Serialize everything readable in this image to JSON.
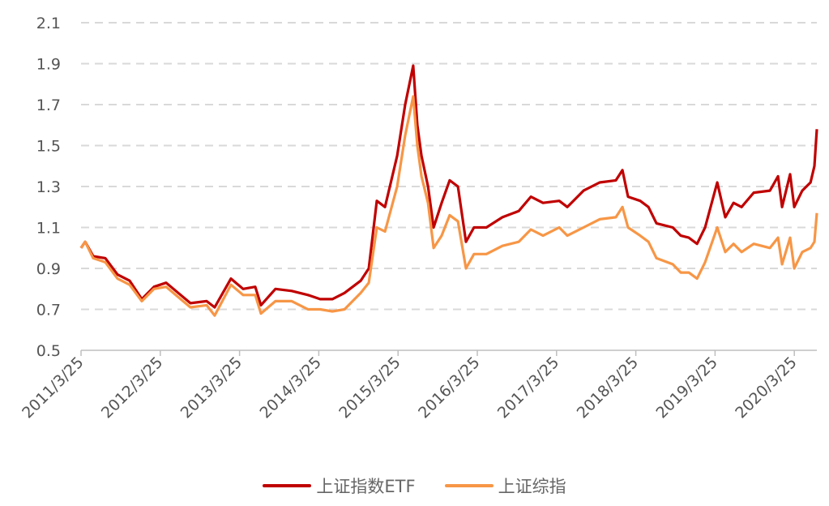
{
  "chart_data": {
    "type": "line",
    "title": "",
    "xlabel": "",
    "ylabel": "",
    "ylim": [
      0.5,
      2.1
    ],
    "yticks": [
      "0.5",
      "0.7",
      "0.9",
      "1.1",
      "1.3",
      "1.5",
      "1.7",
      "1.9",
      "2.1"
    ],
    "xticks": [
      "2011/3/25",
      "2012/3/25",
      "2013/3/25",
      "2014/3/25",
      "2015/3/25",
      "2016/3/25",
      "2017/3/25",
      "2018/3/25",
      "2019/3/25",
      "2020/3/25"
    ],
    "grid": "horizontal dashed",
    "legend_position": "bottom",
    "x": [
      "2011-03-25",
      "2011-04-13",
      "2011-05-20",
      "2011-07-15",
      "2011-09-09",
      "2011-11-04",
      "2011-12-30",
      "2012-02-24",
      "2012-04-20",
      "2012-06-15",
      "2012-08-10",
      "2012-10-24",
      "2012-11-30",
      "2013-02-13",
      "2013-04-10",
      "2013-06-05",
      "2013-07-01",
      "2013-09-06",
      "2013-11-20",
      "2014-02-03",
      "2014-03-31",
      "2014-05-26",
      "2014-07-21",
      "2014-10-04",
      "2014-11-10",
      "2014-12-17",
      "2015-01-24",
      "2015-03-21",
      "2015-04-27",
      "2015-06-03",
      "2015-06-22",
      "2015-07-11",
      "2015-08-10",
      "2015-09-05",
      "2015-10-12",
      "2015-11-18",
      "2015-12-26",
      "2016-02-01",
      "2016-03-09",
      "2016-05-05",
      "2016-07-18",
      "2016-10-01",
      "2016-11-26",
      "2017-01-21",
      "2017-04-06",
      "2017-05-13",
      "2017-07-27",
      "2017-10-09",
      "2017-12-23",
      "2018-01-22",
      "2018-02-17",
      "2018-04-14",
      "2018-05-22",
      "2018-06-28",
      "2018-09-11",
      "2018-10-18",
      "2018-11-24",
      "2019-01-01",
      "2019-02-07",
      "2019-04-04",
      "2019-05-11",
      "2019-06-18",
      "2019-07-25",
      "2019-09-19",
      "2019-12-03",
      "2020-01-09",
      "2020-01-28",
      "2020-03-05",
      "2020-03-24",
      "2020-04-30",
      "2020-06-07",
      "2020-06-25",
      "2020-07-06"
    ],
    "series": [
      {
        "name": "上证指数ETF",
        "color": "#C00000",
        "values": [
          1.0,
          1.03,
          0.96,
          0.95,
          0.87,
          0.84,
          0.75,
          0.81,
          0.83,
          0.78,
          0.73,
          0.74,
          0.71,
          0.85,
          0.8,
          0.81,
          0.72,
          0.8,
          0.79,
          0.77,
          0.75,
          0.75,
          0.78,
          0.84,
          0.9,
          1.23,
          1.2,
          1.45,
          1.7,
          1.89,
          1.6,
          1.45,
          1.3,
          1.1,
          1.22,
          1.33,
          1.3,
          1.03,
          1.1,
          1.1,
          1.15,
          1.18,
          1.25,
          1.22,
          1.23,
          1.2,
          1.28,
          1.32,
          1.33,
          1.38,
          1.25,
          1.23,
          1.2,
          1.12,
          1.1,
          1.06,
          1.05,
          1.02,
          1.1,
          1.32,
          1.15,
          1.22,
          1.2,
          1.27,
          1.28,
          1.35,
          1.2,
          1.36,
          1.2,
          1.28,
          1.32,
          1.4,
          1.58
        ]
      },
      {
        "name": "上证综指",
        "color": "#F79646",
        "values": [
          1.0,
          1.03,
          0.95,
          0.93,
          0.85,
          0.82,
          0.74,
          0.8,
          0.81,
          0.76,
          0.71,
          0.72,
          0.67,
          0.82,
          0.77,
          0.77,
          0.68,
          0.74,
          0.74,
          0.7,
          0.7,
          0.69,
          0.7,
          0.78,
          0.83,
          1.1,
          1.08,
          1.3,
          1.55,
          1.74,
          1.5,
          1.35,
          1.22,
          1.0,
          1.06,
          1.16,
          1.13,
          0.9,
          0.97,
          0.97,
          1.01,
          1.03,
          1.09,
          1.06,
          1.1,
          1.06,
          1.1,
          1.14,
          1.15,
          1.2,
          1.1,
          1.06,
          1.03,
          0.95,
          0.92,
          0.88,
          0.88,
          0.85,
          0.93,
          1.1,
          0.98,
          1.02,
          0.98,
          1.02,
          1.0,
          1.05,
          0.92,
          1.05,
          0.9,
          0.98,
          1.0,
          1.03,
          1.17
        ]
      }
    ]
  }
}
